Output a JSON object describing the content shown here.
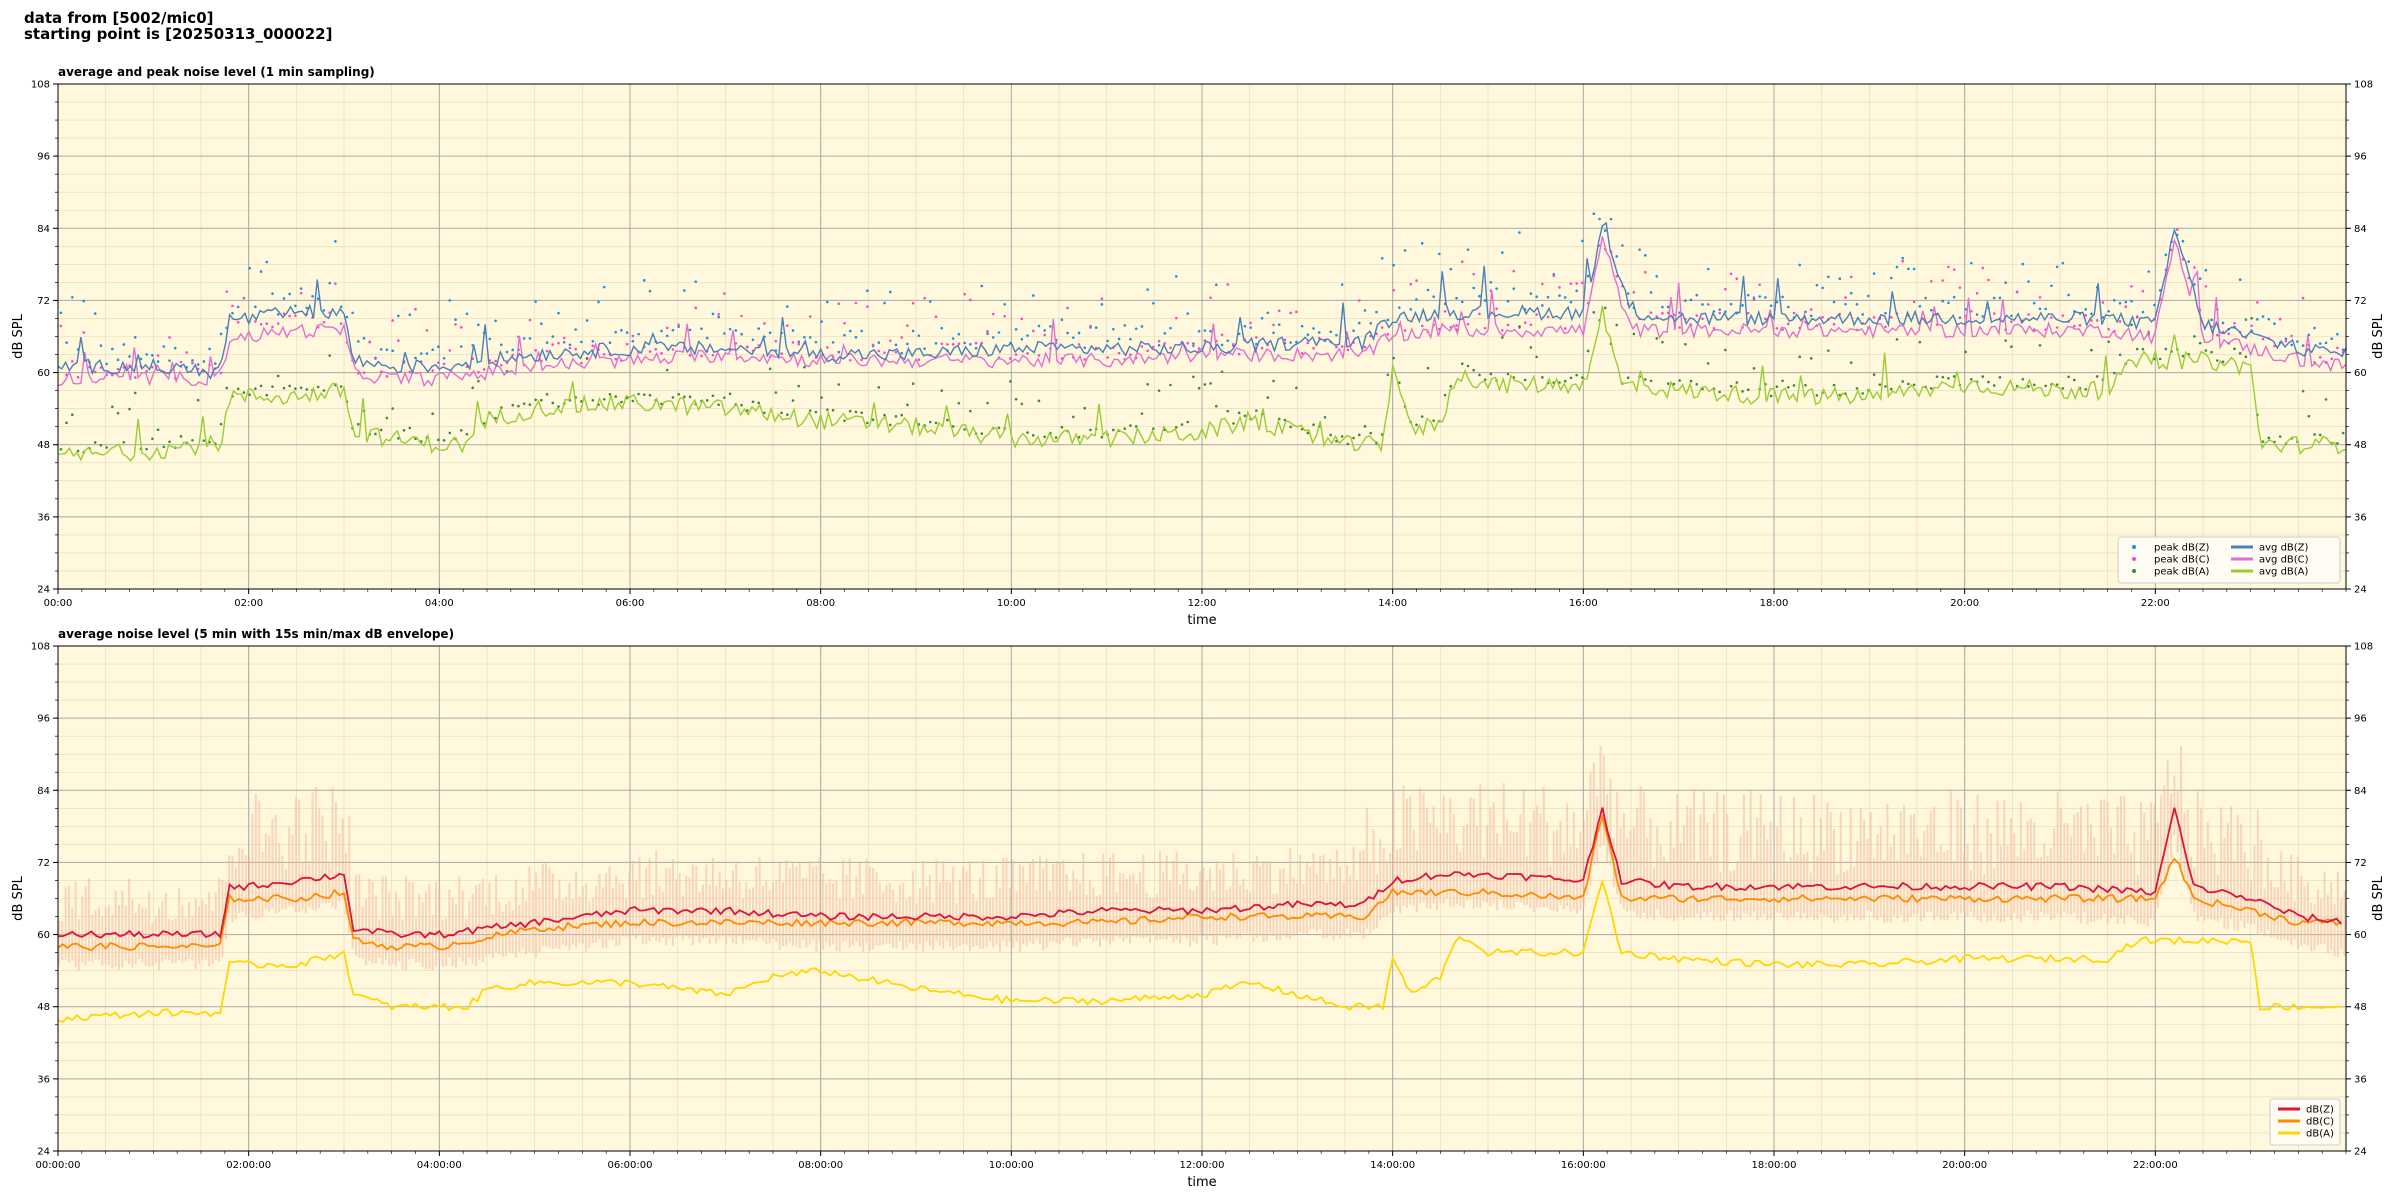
{
  "header": {
    "line1": "data from [5002/mic0]",
    "line2": "starting point is [20250313_000022]"
  },
  "colors": {
    "face": "#fff8dc",
    "peak_z": "#1f8fe0",
    "peak_c": "#ff44cc",
    "peak_a": "#3a8a3a",
    "avg_z": "#4a7fb8",
    "avg_c": "#e070d0",
    "avg_a": "#9acd32",
    "dbz": "#dc143c",
    "dbc": "#ff8c00",
    "dba": "#ffd700",
    "envelope": "#f4b8a0"
  },
  "chart_data": [
    {
      "type": "line",
      "title": "average and peak noise level (1 min sampling)",
      "xlabel": "time",
      "ylabel": "dB SPL",
      "ylim": [
        24,
        108
      ],
      "yticks": [
        "24",
        "36",
        "48",
        "60",
        "72",
        "84",
        "96",
        "108"
      ],
      "xticks": [
        "00:00",
        "02:00",
        "04:00",
        "06:00",
        "08:00",
        "10:00",
        "12:00",
        "14:00",
        "16:00",
        "18:00",
        "20:00",
        "22:00"
      ],
      "x_unit_hours": [
        0,
        24
      ],
      "grid": true,
      "legend_position": "lower-right",
      "legend": [
        {
          "label": "peak dB(Z)",
          "kind": "marker",
          "color_key": "peak_z"
        },
        {
          "label": "peak dB(C)",
          "kind": "marker",
          "color_key": "peak_c"
        },
        {
          "label": "peak dB(A)",
          "kind": "marker",
          "color_key": "peak_a"
        },
        {
          "label": "avg dB(Z)",
          "kind": "line",
          "color_key": "avg_z"
        },
        {
          "label": "avg dB(C)",
          "kind": "line",
          "color_key": "avg_c"
        },
        {
          "label": "avg dB(A)",
          "kind": "line",
          "color_key": "avg_a"
        }
      ],
      "series": [
        {
          "name": "avg dB(Z)",
          "x_hours": [
            0,
            1,
            1.7,
            1.8,
            2,
            2.5,
            3,
            3.1,
            3.5,
            4,
            4.5,
            5,
            6,
            7,
            8,
            9,
            10,
            11,
            12,
            13,
            13.7,
            14,
            14.5,
            15,
            15.5,
            16,
            16.2,
            16.5,
            17,
            18,
            19,
            20,
            21,
            21.5,
            22,
            22.2,
            22.5,
            23,
            23.5,
            24
          ],
          "values": [
            61,
            61,
            60,
            69,
            69,
            70,
            70,
            62,
            61,
            61,
            62,
            63,
            64,
            64,
            63,
            63,
            64,
            64,
            64,
            65,
            65,
            69,
            70,
            70,
            70,
            70,
            84,
            70,
            69,
            69,
            69,
            69,
            69,
            69,
            68,
            84,
            68,
            66,
            64,
            63
          ]
        },
        {
          "name": "avg dB(C)",
          "x_hours": [
            0,
            1,
            1.7,
            1.8,
            2,
            2.5,
            3,
            3.1,
            3.5,
            4,
            4.5,
            5,
            6,
            7,
            8,
            9,
            10,
            11,
            12,
            13,
            13.7,
            14,
            14.5,
            15,
            15.5,
            16,
            16.2,
            16.5,
            17,
            18,
            19,
            20,
            21,
            21.5,
            22,
            22.2,
            22.5,
            23,
            23.5,
            24
          ],
          "values": [
            59,
            59,
            59,
            66,
            66,
            67,
            67,
            60,
            59,
            59,
            60,
            61,
            62,
            63,
            62,
            62,
            62,
            62,
            63,
            63,
            63,
            66,
            67,
            67,
            67,
            67,
            82,
            67,
            67,
            67,
            67,
            67,
            67,
            67,
            66,
            82,
            66,
            64,
            62,
            61
          ]
        },
        {
          "name": "avg dB(A)",
          "x_hours": [
            0,
            1,
            1.5,
            1.7,
            1.8,
            2,
            2.5,
            3,
            3.1,
            3.5,
            4,
            4.3,
            4.5,
            5,
            6,
            7,
            8,
            9,
            10,
            11,
            12,
            12.5,
            13,
            13.5,
            13.9,
            14,
            14.2,
            14.5,
            14.7,
            15,
            16,
            16.2,
            16.4,
            17,
            18,
            19,
            20,
            21,
            21.5,
            21.8,
            22,
            22.5,
            23,
            23.1,
            24
          ],
          "values": [
            46,
            47,
            48,
            48,
            56,
            56,
            56,
            57,
            50,
            49,
            48,
            48,
            52,
            54,
            55,
            54,
            52,
            51,
            49,
            49,
            50,
            52,
            50,
            48,
            48,
            62,
            50,
            52,
            60,
            58,
            58,
            70,
            58,
            57,
            56,
            56,
            58,
            57,
            57,
            62,
            62,
            62,
            61,
            48,
            48
          ]
        }
      ]
    },
    {
      "type": "line",
      "title": "average noise level (5 min with 15s min/max dB envelope)",
      "xlabel": "time",
      "ylabel": "dB SPL",
      "ylim": [
        24,
        108
      ],
      "yticks": [
        "24",
        "36",
        "48",
        "60",
        "72",
        "84",
        "96",
        "108"
      ],
      "xticks": [
        "00:00:00",
        "02:00:00",
        "04:00:00",
        "06:00:00",
        "08:00:00",
        "10:00:00",
        "12:00:00",
        "14:00:00",
        "16:00:00",
        "18:00:00",
        "20:00:00",
        "22:00:00"
      ],
      "x_unit_hours": [
        0,
        24
      ],
      "grid": true,
      "legend_position": "lower-right",
      "legend": [
        {
          "label": "dB(Z)",
          "kind": "line",
          "color_key": "dbz"
        },
        {
          "label": "dB(C)",
          "kind": "line",
          "color_key": "dbc"
        },
        {
          "label": "dB(A)",
          "kind": "line",
          "color_key": "dba"
        }
      ],
      "series": [
        {
          "name": "dB(Z)",
          "x_hours": [
            0,
            1,
            1.7,
            1.8,
            2,
            2.5,
            3,
            3.1,
            3.5,
            4,
            5,
            6,
            7,
            8,
            9,
            10,
            11,
            12,
            13,
            13.7,
            14,
            14.5,
            15,
            16,
            16.2,
            16.4,
            17,
            18,
            19,
            20,
            21,
            22,
            22.2,
            22.4,
            23,
            23.5,
            24
          ],
          "values": [
            60,
            60,
            60,
            68,
            68,
            69,
            70,
            61,
            60,
            60,
            62,
            64,
            64,
            63,
            63,
            63,
            64,
            64,
            65,
            65,
            69,
            70,
            70,
            69,
            81,
            69,
            68,
            68,
            68,
            68,
            68,
            67,
            81,
            68,
            66,
            63,
            62
          ]
        },
        {
          "name": "dB(C)",
          "x_hours": [
            0,
            1,
            1.7,
            1.8,
            2,
            2.5,
            3,
            3.1,
            3.5,
            4,
            5,
            6,
            7,
            8,
            9,
            10,
            11,
            12,
            13,
            13.7,
            14,
            14.5,
            15,
            16,
            16.2,
            16.4,
            17,
            18,
            19,
            20,
            21,
            22,
            22.2,
            22.4,
            23,
            23.5,
            24
          ],
          "values": [
            58,
            58,
            58,
            66,
            66,
            66,
            67,
            59,
            58,
            58,
            61,
            62,
            62,
            62,
            62,
            62,
            62,
            63,
            63,
            63,
            67,
            67,
            67,
            66,
            80,
            66,
            66,
            66,
            66,
            66,
            66,
            66,
            73,
            66,
            64,
            62,
            62
          ]
        },
        {
          "name": "dB(A)",
          "x_hours": [
            0,
            1,
            1.7,
            1.8,
            2,
            2.5,
            3,
            3.1,
            3.5,
            4,
            4.3,
            4.5,
            5,
            6,
            7,
            7.5,
            8,
            9,
            10,
            11,
            12,
            12.5,
            13,
            13.5,
            13.9,
            14,
            14.2,
            14.5,
            14.7,
            15,
            16,
            16.2,
            16.4,
            17,
            18,
            19,
            20,
            21,
            21.5,
            21.8,
            22,
            22.5,
            23,
            23.1,
            24
          ],
          "values": [
            46,
            47,
            47,
            55,
            55,
            55,
            57,
            50,
            48,
            48,
            48,
            51,
            52,
            52,
            50,
            53,
            54,
            51,
            49,
            49,
            50,
            52,
            50,
            48,
            48,
            56,
            50,
            53,
            60,
            57,
            57,
            69,
            57,
            56,
            55,
            55,
            56,
            56,
            56,
            59,
            59,
            59,
            59,
            48,
            48
          ]
        }
      ]
    }
  ]
}
